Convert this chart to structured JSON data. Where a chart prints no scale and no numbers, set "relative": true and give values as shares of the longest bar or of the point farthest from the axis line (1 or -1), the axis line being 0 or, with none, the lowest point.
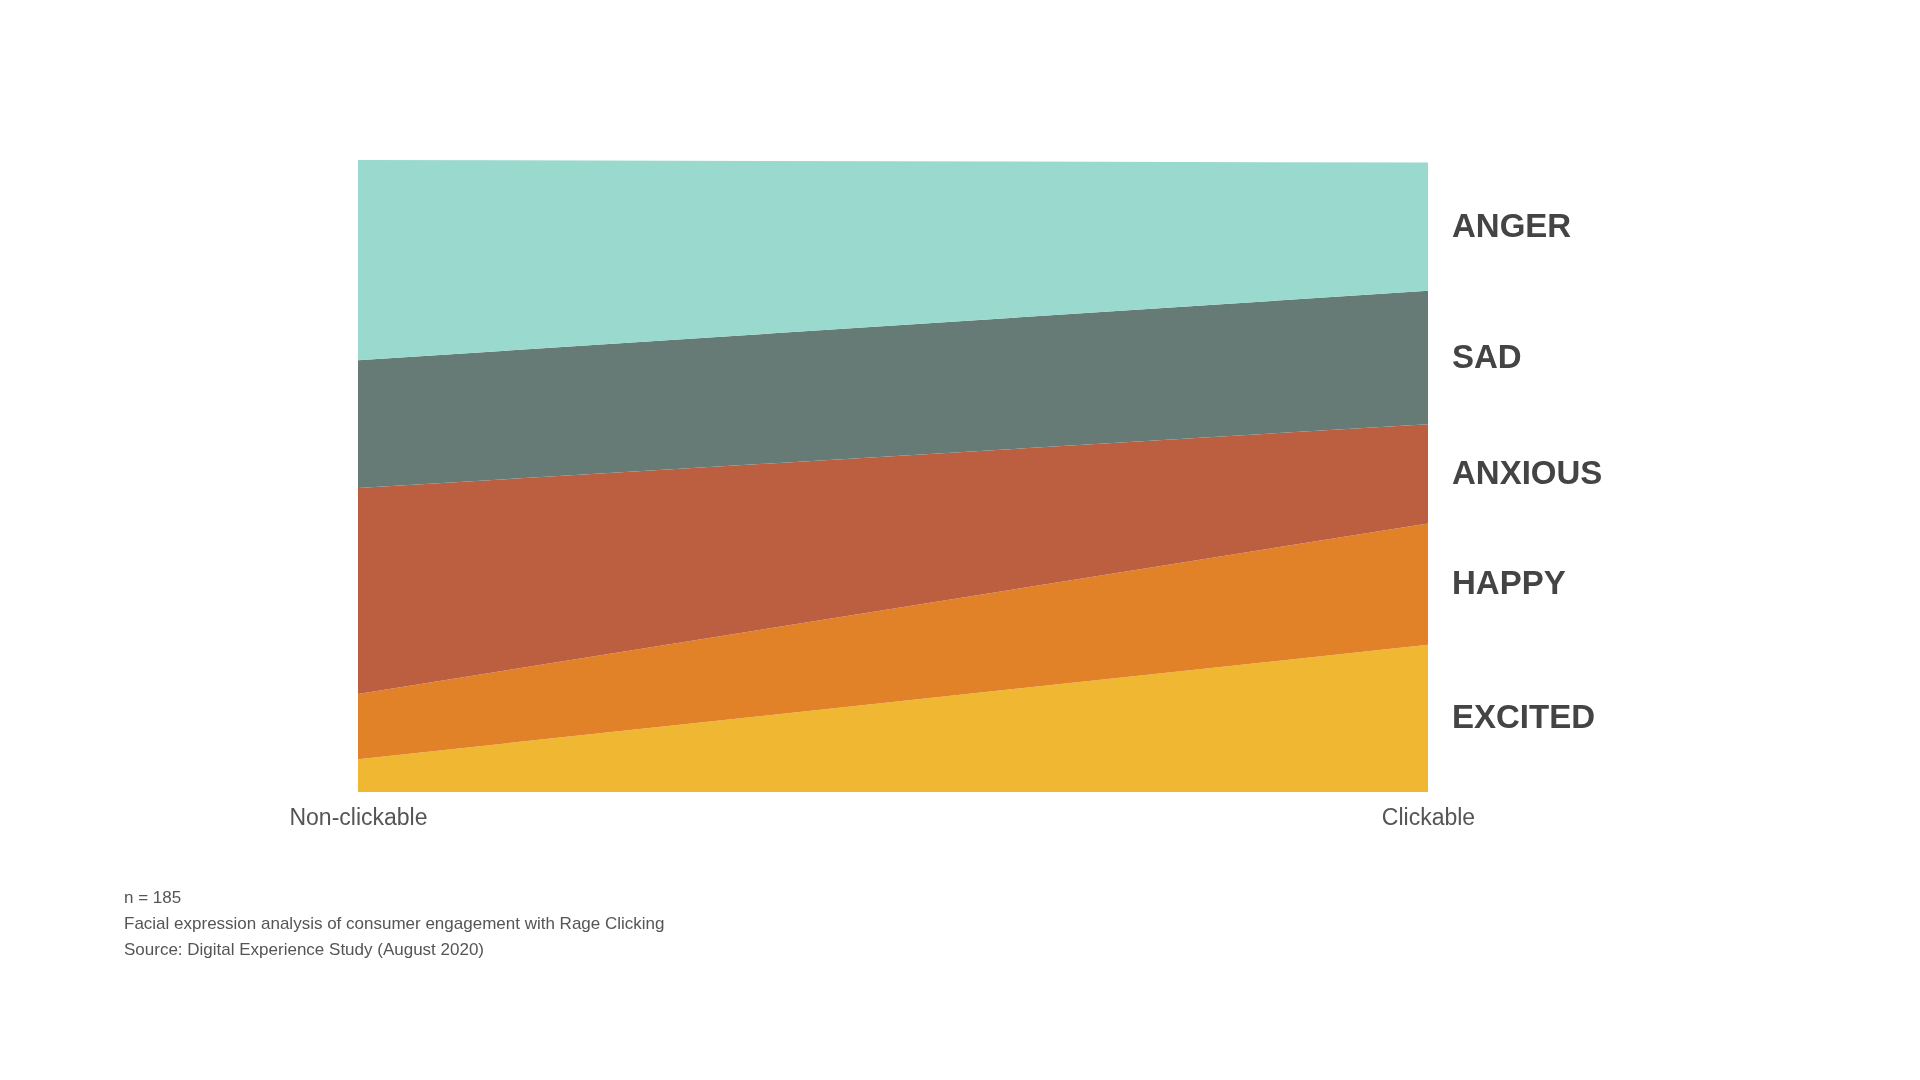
{
  "chart_data": {
    "type": "area",
    "stacked": true,
    "relative": true,
    "categories": [
      "Non-clickable",
      "Clickable"
    ],
    "series": [
      {
        "name": "EXCITED",
        "color": "#f0b733",
        "values": [
          0.052,
          0.233
        ]
      },
      {
        "name": "HAPPY",
        "color": "#e18128",
        "values": [
          0.103,
          0.192
        ]
      },
      {
        "name": "ANXIOUS",
        "color": "#bc5f40",
        "values": [
          0.326,
          0.157
        ]
      },
      {
        "name": "SAD",
        "color": "#667b76",
        "values": [
          0.202,
          0.211
        ]
      },
      {
        "name": "ANGER",
        "color": "#9ad9cd",
        "values": [
          0.317,
          0.203
        ]
      }
    ],
    "annotations": [
      "n = 185",
      "Facial expression analysis of consumer engagement with Rage Clicking",
      "Source: Digital Experience Study (August 2020)"
    ]
  }
}
